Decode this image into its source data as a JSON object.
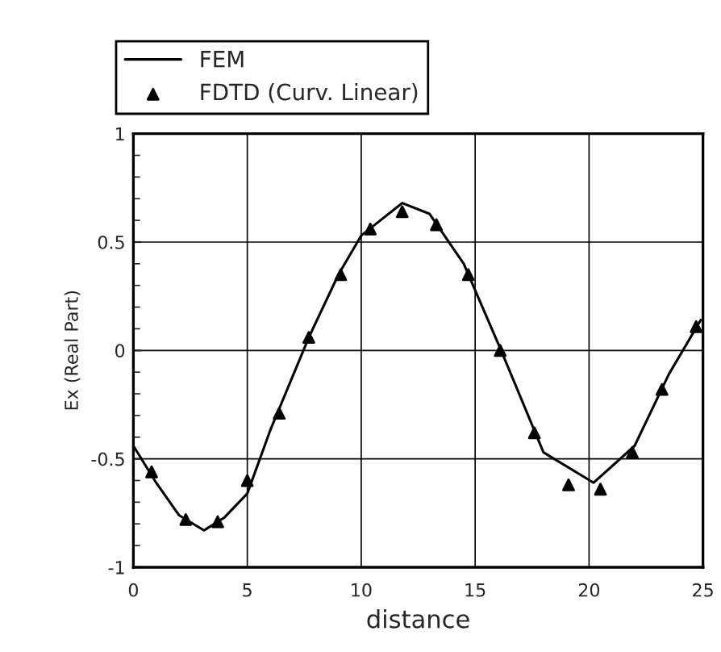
{
  "chart_data": {
    "type": "line",
    "xlabel": "distance",
    "ylabel": "Ex (Real Part)",
    "xlim": [
      0,
      25
    ],
    "xticks": [
      0,
      5,
      10,
      15,
      20,
      25
    ],
    "ylim": [
      -1,
      1
    ],
    "yticks": [
      -1,
      -0.5,
      0,
      0.5,
      1
    ],
    "grid": true,
    "legend": "top",
    "series": [
      {
        "name": "FEM",
        "color": "#000000",
        "marker": "none",
        "line_style": "solid",
        "x": [
          0,
          1,
          2,
          3.1,
          4,
          5,
          6,
          7.7,
          9,
          10,
          11.8,
          13,
          14.5,
          16.1,
          18,
          20.2,
          22,
          23.5,
          24.9
        ],
        "values": [
          -0.44,
          -0.61,
          -0.76,
          -0.83,
          -0.77,
          -0.66,
          -0.37,
          0.06,
          0.35,
          0.53,
          0.68,
          0.63,
          0.4,
          0.01,
          -0.47,
          -0.61,
          -0.44,
          -0.11,
          0.14
        ]
      },
      {
        "name": "FDTD (Curv. Linear)",
        "type": "scatter",
        "color": "#000000",
        "marker": "triangle",
        "x": [
          0.8,
          2.3,
          3.7,
          5.0,
          6.4,
          7.7,
          9.1,
          10.4,
          11.8,
          13.3,
          14.7,
          16.1,
          17.6,
          19.1,
          20.5,
          21.9,
          23.2,
          24.7
        ],
        "values": [
          -0.56,
          -0.78,
          -0.79,
          -0.6,
          -0.29,
          0.06,
          0.35,
          0.56,
          0.64,
          0.58,
          0.35,
          0.0,
          -0.38,
          -0.62,
          -0.64,
          -0.47,
          -0.18,
          0.11
        ]
      }
    ]
  }
}
